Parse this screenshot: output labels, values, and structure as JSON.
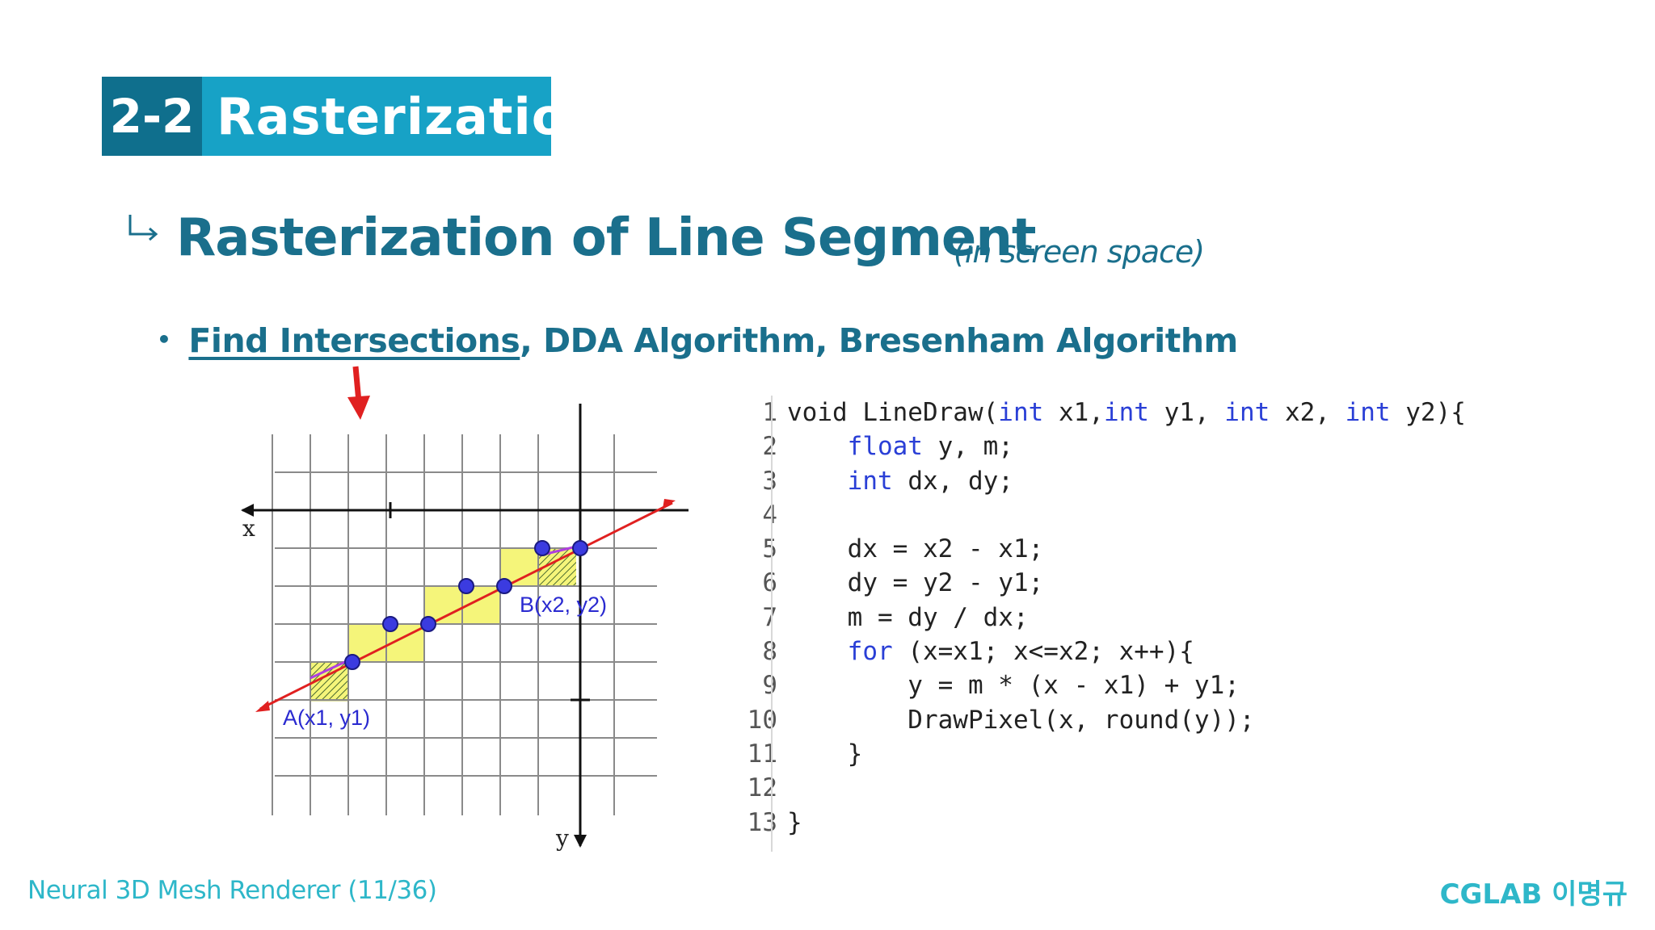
{
  "section": {
    "number": "2-2",
    "title": "Rasterization"
  },
  "heading": {
    "title": "Rasterization of Line Segment",
    "note": "(in screen space)"
  },
  "bullet": {
    "link_text": "Find Intersections",
    "rest_text": ", DDA Algorithm, Bresenham Algorithm"
  },
  "figure": {
    "axis_x": "x",
    "axis_y": "y",
    "point_a": "A(x1, y1)",
    "point_b": "B(x2, y2)",
    "colors": {
      "line": "#e02020",
      "cell": "#f5f57a",
      "point": "#3b3be0",
      "arrow": "#e02020"
    }
  },
  "code": {
    "line_numbers": [
      "1",
      "2",
      "3",
      "4",
      "5",
      "6",
      "7",
      "8",
      "9",
      "10",
      "11",
      "12",
      "13"
    ],
    "lines": [
      "void LineDraw(int x1,int y1, int x2, int y2){",
      "    float y, m;",
      "    int dx, dy;",
      "",
      "    dx = x2 - x1;",
      "    dy = y2 - y1;",
      "    m = dy / dx;",
      "    for (x=x1; x<=x2; x++){",
      "        y = m * (x - x1) + y1;",
      "        DrawPixel(x, round(y));",
      "    }",
      "",
      "}"
    ]
  },
  "footer": {
    "left": "Neural 3D Mesh Renderer (11/36)",
    "right": "CGLAB 이명규"
  }
}
